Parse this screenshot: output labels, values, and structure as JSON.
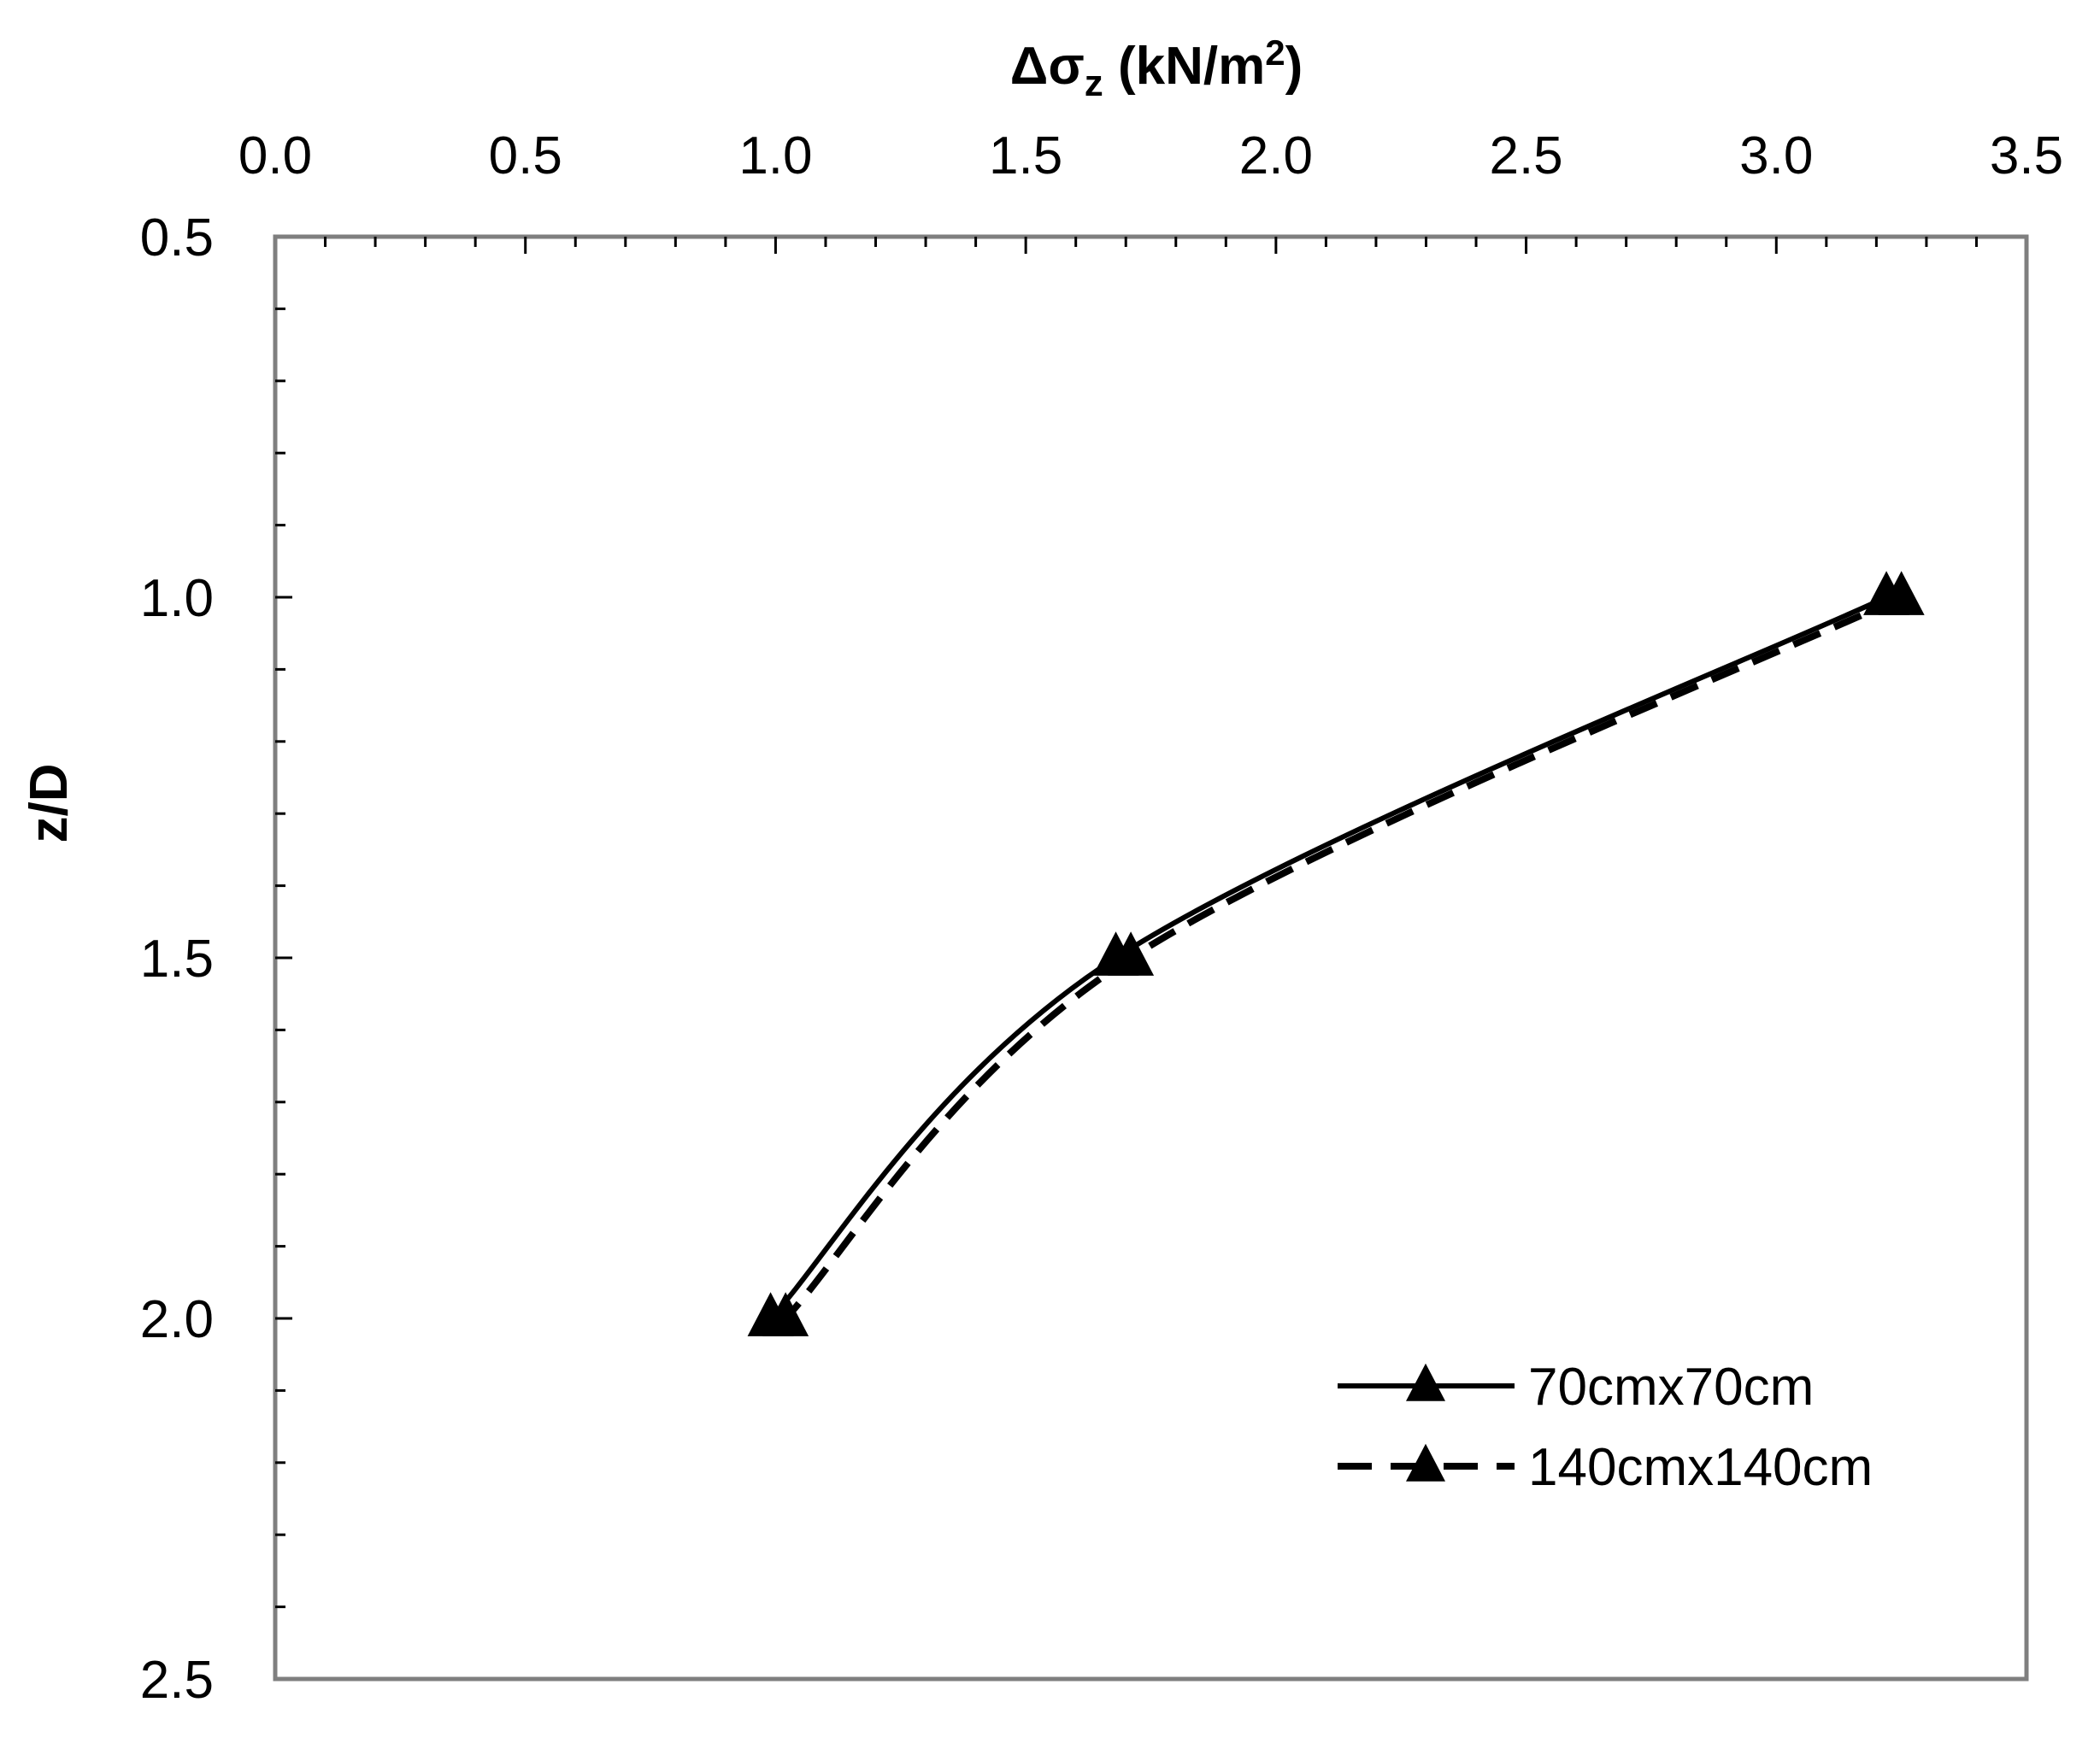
{
  "chart_data": {
    "type": "line",
    "xlabel": {
      "base": "Δσ",
      "sub": "z",
      "unit_pre": " (kN/m",
      "sup": "2",
      "unit_post": ")"
    },
    "ylabel": "z/D",
    "x_axis_position": "top",
    "y_axis_inverted": true,
    "xlim": [
      0.0,
      3.5
    ],
    "ylim": [
      0.5,
      2.5
    ],
    "x_ticks": [
      "0.0",
      "0.5",
      "1.0",
      "1.5",
      "2.0",
      "2.5",
      "3.0",
      "3.5"
    ],
    "y_ticks": [
      "0.5",
      "1.0",
      "1.5",
      "2.0",
      "2.5"
    ],
    "grid": false,
    "legend_position": "bottom-right",
    "series": [
      {
        "name": "70cmx70cm",
        "line": "solid",
        "marker": "triangle",
        "color": "#000000",
        "points": [
          {
            "x": 3.22,
            "y": 1.0
          },
          {
            "x": 1.68,
            "y": 1.5
          },
          {
            "x": 0.99,
            "y": 2.0
          }
        ]
      },
      {
        "name": "140cmx140cm",
        "line": "dashed",
        "marker": "triangle",
        "color": "#000000",
        "points": [
          {
            "x": 3.25,
            "y": 1.0
          },
          {
            "x": 1.71,
            "y": 1.5
          },
          {
            "x": 1.02,
            "y": 2.0
          }
        ]
      }
    ]
  }
}
